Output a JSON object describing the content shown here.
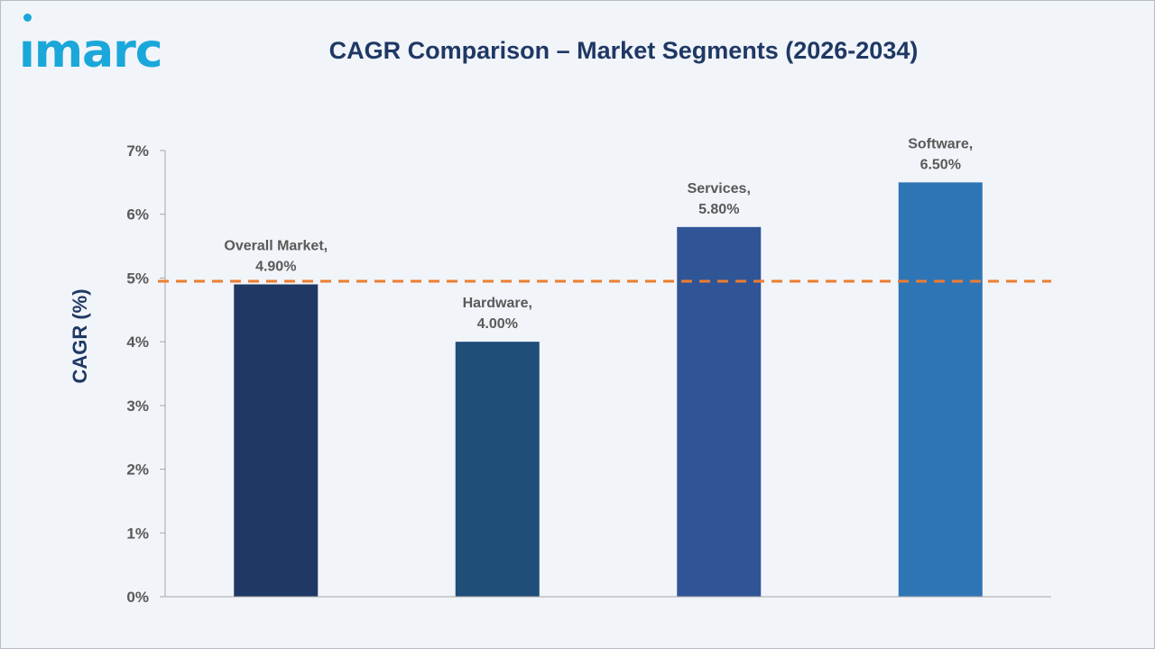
{
  "logo": {
    "text": "ımarc"
  },
  "chart_data": {
    "type": "bar",
    "title": "CAGR Comparison – Market Segments (2026-2034)",
    "ylabel": "CAGR (%)",
    "xlabel": "",
    "categories": [
      "Overall Market",
      "Hardware",
      "Services",
      "Software"
    ],
    "values": [
      4.9,
      4.0,
      5.8,
      6.5
    ],
    "data_labels": [
      [
        "Overall Market,",
        "4.90%"
      ],
      [
        "Hardware,",
        "4.00%"
      ],
      [
        "Services,",
        "5.80%"
      ],
      [
        "Software,",
        "6.50%"
      ]
    ],
    "bar_colors": [
      "#1f3864",
      "#1f4e79",
      "#2f5597",
      "#2e75b6"
    ],
    "ylim": [
      0,
      7
    ],
    "yticks": [
      0,
      1,
      2,
      3,
      4,
      5,
      6,
      7
    ],
    "ytick_labels": [
      "0%",
      "1%",
      "2%",
      "3%",
      "4%",
      "5%",
      "6%",
      "7%"
    ],
    "reference_line": {
      "value": 4.95,
      "color": "#ed7d31",
      "style": "dashed"
    },
    "grid": false,
    "legend": "none"
  }
}
